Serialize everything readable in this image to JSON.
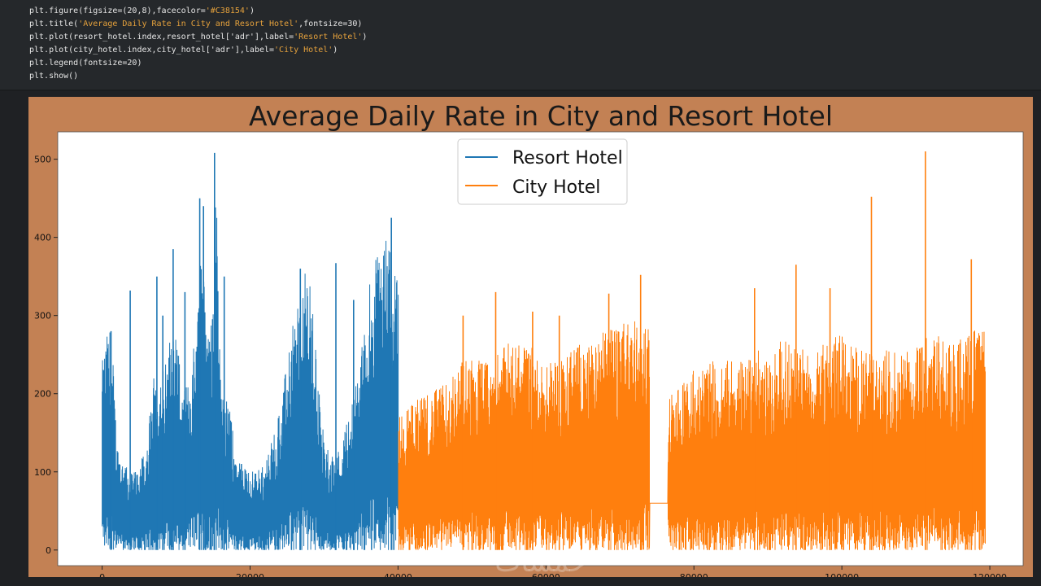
{
  "code": {
    "lines": [
      {
        "pre": "plt.figure(figsize=(20,8),facecolor=",
        "str": "'#C38154'",
        "post": ")"
      },
      {
        "pre": "plt.title(",
        "str": "'Average Daily Rate in City and Resort Hotel'",
        "post": ",fontsize=30)"
      },
      {
        "pre": "plt.plot(resort_hotel.index,resort_hotel['adr'],label=",
        "str": "'Resort Hotel'",
        "post": ")"
      },
      {
        "pre": "plt.plot(city_hotel.index,city_hotel['adr'],label=",
        "str": "'City Hotel'",
        "post": ")"
      },
      {
        "pre": "plt.legend(fontsize=20)",
        "str": "",
        "post": ""
      },
      {
        "pre": "plt.show()",
        "str": "",
        "post": ""
      }
    ]
  },
  "colors": {
    "figure_bg": "#C38154",
    "editor_bg": "#25282b",
    "resort": "#1f77b4",
    "city": "#ff7f0e"
  },
  "watermark": "خمسات",
  "chart_data": {
    "type": "line",
    "title": "Average Daily Rate in City and Resort Hotel",
    "xlabel": "",
    "ylabel": "",
    "xlim": [
      -6000,
      124500
    ],
    "ylim": [
      -20,
      535
    ],
    "x_ticks": [
      0,
      20000,
      40000,
      60000,
      80000,
      100000,
      120000
    ],
    "y_ticks": [
      0,
      100,
      200,
      300,
      400,
      500
    ],
    "legend_position": "top-center",
    "grid": false,
    "series": [
      {
        "name": "Resort Hotel",
        "color": "#1f77b4",
        "x_range": [
          0,
          40059
        ],
        "envelope_x": [
          0,
          500,
          1000,
          1500,
          2000,
          3000,
          4000,
          5000,
          6000,
          7000,
          8000,
          9000,
          10000,
          11000,
          12000,
          13000,
          13500,
          14000,
          15000,
          15500,
          16000,
          17000,
          18000,
          19000,
          20000,
          22000,
          24000,
          25000,
          26000,
          27000,
          28000,
          29000,
          30000,
          31000,
          32000,
          33000,
          34000,
          35000,
          36000,
          37000,
          38000,
          39000,
          40000
        ],
        "envelope_upper": [
          240,
          270,
          290,
          240,
          140,
          110,
          100,
          110,
          130,
          230,
          220,
          270,
          290,
          200,
          230,
          330,
          430,
          290,
          340,
          500,
          220,
          200,
          130,
          110,
          100,
          110,
          180,
          240,
          300,
          350,
          360,
          250,
          140,
          120,
          130,
          160,
          200,
          260,
          330,
          390,
          410,
          380,
          390
        ],
        "spikes": [
          {
            "x": 1200,
            "y": 280
          },
          {
            "x": 3800,
            "y": 332
          },
          {
            "x": 7400,
            "y": 350
          },
          {
            "x": 8200,
            "y": 300
          },
          {
            "x": 9600,
            "y": 385
          },
          {
            "x": 11200,
            "y": 330
          },
          {
            "x": 13200,
            "y": 450
          },
          {
            "x": 13700,
            "y": 440
          },
          {
            "x": 15200,
            "y": 508
          },
          {
            "x": 16500,
            "y": 350
          },
          {
            "x": 26800,
            "y": 360
          },
          {
            "x": 31600,
            "y": 367
          },
          {
            "x": 34000,
            "y": 320
          },
          {
            "x": 39100,
            "y": 425
          }
        ]
      },
      {
        "name": "City Hotel",
        "color": "#ff7f0e",
        "x_range": [
          40060,
          119389
        ],
        "gap_x": [
          74000,
          76500
        ],
        "envelope_x": [
          40060,
          42000,
          44000,
          46000,
          48000,
          50000,
          52000,
          54000,
          56000,
          58000,
          60000,
          62000,
          64000,
          66000,
          68000,
          70000,
          72000,
          74000,
          76500,
          78000,
          80000,
          82000,
          84000,
          86000,
          88000,
          90000,
          92000,
          94000,
          96000,
          98000,
          100000,
          102000,
          104000,
          106000,
          108000,
          110000,
          112000,
          114000,
          116000,
          118000,
          119389
        ],
        "envelope_upper": [
          170,
          190,
          200,
          210,
          240,
          250,
          240,
          260,
          270,
          260,
          240,
          250,
          260,
          270,
          280,
          290,
          300,
          290,
          200,
          210,
          230,
          240,
          250,
          240,
          260,
          250,
          270,
          260,
          250,
          270,
          280,
          260,
          250,
          260,
          250,
          260,
          280,
          270,
          270,
          290,
          280
        ],
        "spikes": [
          {
            "x": 48800,
            "y": 300
          },
          {
            "x": 53200,
            "y": 330
          },
          {
            "x": 58200,
            "y": 305
          },
          {
            "x": 61800,
            "y": 300
          },
          {
            "x": 68500,
            "y": 328
          },
          {
            "x": 72800,
            "y": 352
          },
          {
            "x": 88200,
            "y": 335
          },
          {
            "x": 93800,
            "y": 365
          },
          {
            "x": 98400,
            "y": 335
          },
          {
            "x": 104000,
            "y": 452
          },
          {
            "x": 111300,
            "y": 510
          },
          {
            "x": 117500,
            "y": 372
          }
        ]
      }
    ]
  }
}
